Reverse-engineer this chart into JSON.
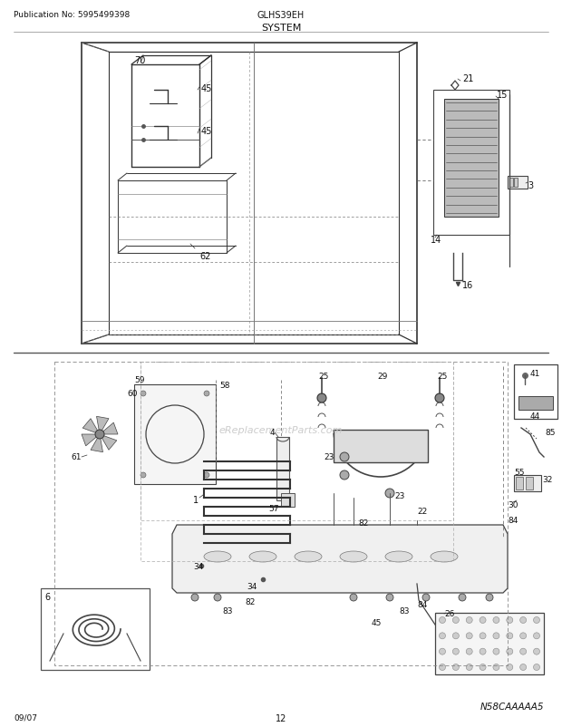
{
  "title": "SYSTEM",
  "pub_no": "Publication No: 5995499398",
  "model": "GLHS39EH",
  "date": "09/07",
  "page": "12",
  "diagram_id": "N58CAAAAA5",
  "watermark": "eReplacementParts.com",
  "bg_color": "#ffffff",
  "fig_w": 6.2,
  "fig_h": 8.03,
  "dpi": 100
}
